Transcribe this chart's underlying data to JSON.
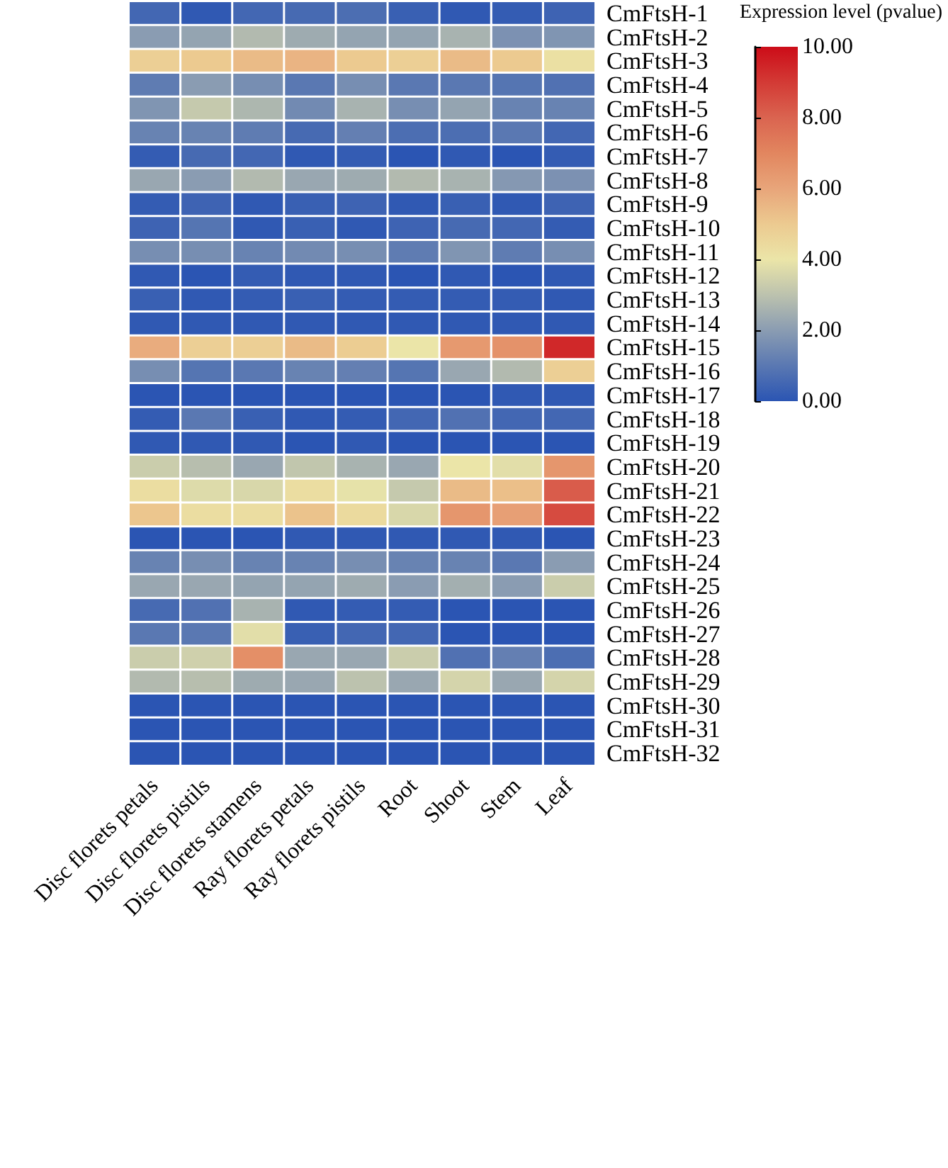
{
  "chart_data": {
    "type": "heatmap",
    "clabel": "Expression level (pvalue)",
    "categories": [
      "Disc florets petals",
      "Disc florets pistils",
      "Disc florets stamens",
      "Ray florets petals",
      "Ray florets pistils",
      "Root",
      "Shoot",
      "Stem",
      "Leaf"
    ],
    "y_categories": [
      "CmFtsH-1",
      "CmFtsH-2",
      "CmFtsH-3",
      "CmFtsH-4",
      "CmFtsH-5",
      "CmFtsH-6",
      "CmFtsH-7",
      "CmFtsH-8",
      "CmFtsH-9",
      "CmFtsH-10",
      "CmFtsH-11",
      "CmFtsH-12",
      "CmFtsH-13",
      "CmFtsH-14",
      "CmFtsH-15",
      "CmFtsH-16",
      "CmFtsH-17",
      "CmFtsH-18",
      "CmFtsH-19",
      "CmFtsH-20",
      "CmFtsH-21",
      "CmFtsH-22",
      "CmFtsH-23",
      "CmFtsH-24",
      "CmFtsH-25",
      "CmFtsH-26",
      "CmFtsH-27",
      "CmFtsH-28",
      "CmFtsH-29",
      "CmFtsH-30",
      "CmFtsH-31",
      "CmFtsH-32"
    ],
    "cells": [
      [
        0.5,
        0.1,
        0.5,
        0.6,
        0.7,
        0.3,
        0.1,
        0.2,
        0.4
      ],
      [
        2.0,
        2.2,
        2.8,
        2.4,
        2.2,
        2.2,
        2.6,
        1.7,
        1.8
      ],
      [
        4.8,
        5.0,
        5.4,
        5.6,
        5.0,
        4.8,
        5.4,
        5.0,
        4.2
      ],
      [
        1.1,
        2.0,
        1.6,
        1.0,
        1.6,
        1.0,
        1.0,
        0.9,
        0.8
      ],
      [
        1.8,
        3.2,
        2.7,
        1.5,
        2.6,
        1.6,
        2.2,
        1.3,
        1.3
      ],
      [
        1.3,
        1.3,
        1.1,
        0.6,
        1.2,
        0.7,
        0.7,
        1.0,
        0.5
      ],
      [
        0.2,
        0.6,
        0.5,
        0.1,
        0.2,
        0.0,
        0.1,
        0.0,
        0.2
      ],
      [
        2.3,
        2.0,
        2.8,
        2.3,
        2.4,
        2.8,
        2.6,
        1.9,
        1.7
      ],
      [
        0.2,
        0.4,
        0.1,
        0.3,
        0.4,
        0.1,
        0.3,
        0.1,
        0.4
      ],
      [
        0.4,
        0.9,
        0.1,
        0.3,
        0.1,
        0.4,
        0.6,
        0.5,
        0.2
      ],
      [
        1.6,
        1.6,
        1.3,
        1.5,
        1.6,
        1.1,
        1.8,
        1.1,
        1.6
      ],
      [
        0.1,
        0.0,
        0.2,
        0.1,
        0.1,
        0.0,
        0.1,
        0.0,
        0.1
      ],
      [
        0.3,
        0.1,
        0.2,
        0.3,
        0.2,
        0.2,
        0.2,
        0.2,
        0.1
      ],
      [
        0.1,
        0.1,
        0.1,
        0.1,
        0.1,
        0.1,
        0.1,
        0.1,
        0.1
      ],
      [
        5.8,
        4.8,
        4.8,
        5.4,
        4.9,
        4.0,
        6.4,
        6.6,
        9.4
      ],
      [
        1.6,
        0.9,
        1.0,
        1.3,
        1.2,
        0.9,
        2.3,
        2.8,
        4.8
      ],
      [
        0.0,
        0.0,
        0.0,
        0.0,
        0.0,
        0.0,
        0.0,
        0.1,
        0.1
      ],
      [
        0.2,
        1.0,
        0.3,
        0.1,
        0.2,
        0.5,
        0.8,
        0.5,
        0.5
      ],
      [
        0.1,
        0.1,
        0.1,
        0.0,
        0.1,
        0.0,
        0.0,
        0.0,
        0.0
      ],
      [
        3.3,
        2.9,
        2.3,
        3.1,
        2.6,
        2.3,
        4.0,
        3.8,
        6.5
      ],
      [
        4.3,
        3.7,
        3.6,
        4.3,
        3.9,
        3.2,
        5.4,
        5.3,
        8.2
      ],
      [
        5.1,
        4.3,
        4.3,
        5.2,
        4.4,
        3.6,
        6.5,
        6.2,
        8.6
      ],
      [
        0.0,
        0.0,
        0.0,
        0.1,
        0.1,
        0.1,
        0.1,
        0.1,
        0.0
      ],
      [
        1.3,
        1.6,
        1.3,
        1.3,
        1.6,
        1.3,
        1.3,
        1.0,
        2.0
      ],
      [
        2.3,
        2.3,
        2.2,
        2.2,
        2.4,
        2.0,
        2.5,
        2.0,
        3.3
      ],
      [
        0.6,
        0.8,
        2.6,
        0.1,
        0.2,
        0.2,
        0.0,
        0.0,
        0.0
      ],
      [
        1.0,
        1.0,
        3.8,
        0.3,
        0.5,
        0.5,
        0.0,
        0.0,
        0.0
      ],
      [
        3.3,
        3.4,
        6.7,
        2.3,
        2.3,
        3.3,
        0.8,
        1.2,
        0.7
      ],
      [
        2.8,
        2.9,
        2.4,
        2.3,
        3.0,
        2.3,
        3.5,
        2.3,
        3.5
      ],
      [
        0.0,
        0.0,
        0.0,
        0.0,
        0.0,
        0.0,
        0.0,
        0.0,
        0.0
      ],
      [
        0.0,
        0.0,
        0.0,
        0.0,
        0.0,
        0.0,
        0.0,
        0.0,
        0.0
      ],
      [
        0.0,
        0.0,
        0.0,
        0.0,
        0.0,
        0.0,
        0.0,
        0.0,
        0.0
      ]
    ],
    "clim": [
      0,
      10
    ],
    "cticks": [
      {
        "value": 0,
        "label": "0.00"
      },
      {
        "value": 2,
        "label": "2.00"
      },
      {
        "value": 4,
        "label": "4.00"
      },
      {
        "value": 6,
        "label": "6.00"
      },
      {
        "value": 8,
        "label": "8.00"
      },
      {
        "value": 10,
        "label": "10.00"
      }
    ]
  }
}
